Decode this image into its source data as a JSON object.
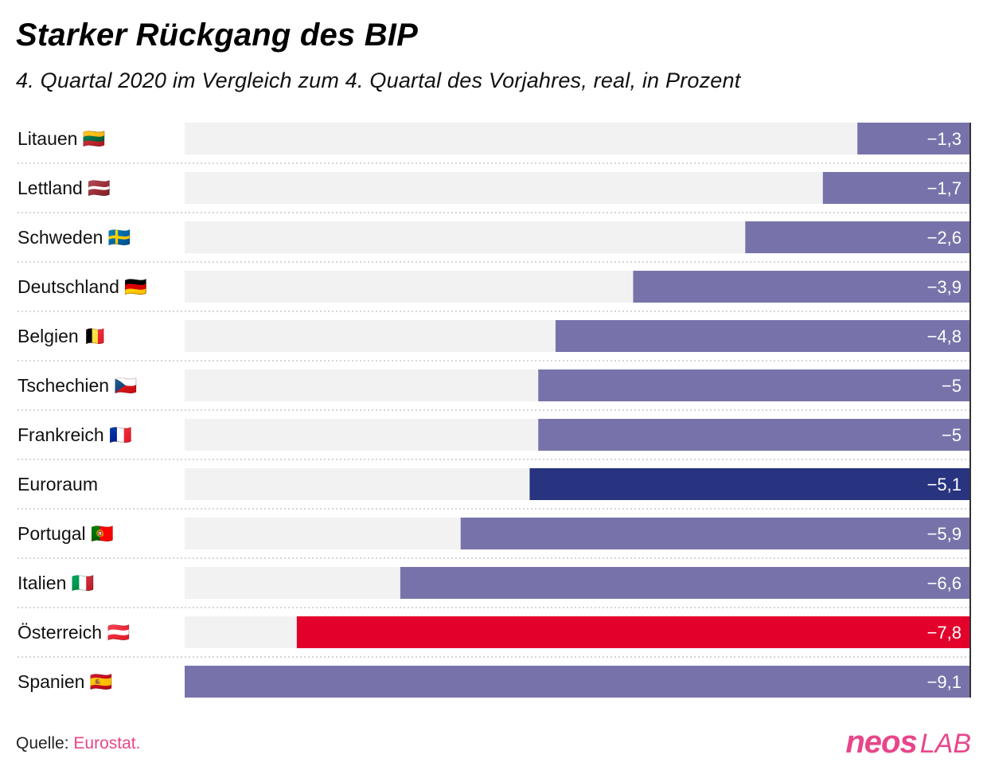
{
  "header": {
    "title": "Starker Rückgang des BIP",
    "subtitle": "4. Quartal 2020 im Vergleich zum 4. Quartal des Vorjahres, real, in Prozent"
  },
  "footer": {
    "source_prefix": "Quelle:",
    "source_name": "Eurostat.",
    "logo_main": "neos",
    "logo_suffix": "LAB"
  },
  "colors": {
    "default_bar": "#7773aa",
    "eurozone_bar": "#283480",
    "austria_bar": "#e3002b",
    "track": "#f2f2f2",
    "accent": "#e8468a"
  },
  "chart_data": {
    "type": "bar",
    "orientation": "horizontal",
    "title": "Starker Rückgang des BIP",
    "subtitle": "4. Quartal 2020 im Vergleich zum 4. Quartal des Vorjahres, real, in Prozent",
    "xlabel": "",
    "ylabel": "",
    "xlim": [
      -9.1,
      0
    ],
    "grid": false,
    "categories": [
      "Litauen",
      "Lettland",
      "Schweden",
      "Deutschland",
      "Belgien",
      "Tschechien",
      "Frankreich",
      "Euroraum",
      "Portugal",
      "Italien",
      "Österreich",
      "Spanien"
    ],
    "flags": [
      "🇱🇹",
      "🇱🇻",
      "🇸🇪",
      "🇩🇪",
      "🇧🇪",
      "🇨🇿",
      "🇫🇷",
      "",
      "🇵🇹",
      "🇮🇹",
      "🇦🇹",
      "🇪🇸"
    ],
    "values": [
      -1.3,
      -1.7,
      -2.6,
      -3.9,
      -4.8,
      -5,
      -5,
      -5.1,
      -5.9,
      -6.6,
      -7.8,
      -9.1
    ],
    "value_labels": [
      "−1,3",
      "−1,7",
      "−2,6",
      "−3,9",
      "−4,8",
      "−5",
      "−5",
      "−5,1",
      "−5,9",
      "−6,6",
      "−7,8",
      "−9,1"
    ],
    "highlight": {
      "Euroraum": "eurozone_bar",
      "Österreich": "austria_bar"
    },
    "source": "Quelle: Eurostat."
  }
}
